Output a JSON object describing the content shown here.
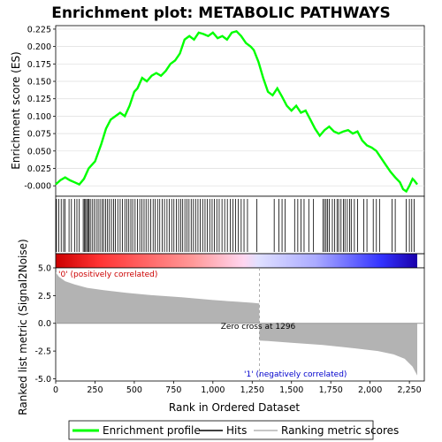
{
  "colors": {
    "enrichment_line": "#00ff00",
    "hit_line": "#000000",
    "metric_fill": "#b3b3b3",
    "zero_line": "#999999",
    "positive_bar": "#ff0000",
    "negative_bar": "#0000ff"
  },
  "chart_data": [
    {
      "type": "line",
      "title": "Enrichment plot: METABOLIC PATHWAYS",
      "ylabel": "Enrichment score (ES)",
      "xlim": [
        0,
        2300
      ],
      "ylim": [
        -0.015,
        0.23
      ],
      "y_ticks": [
        "-0.000",
        "0.025",
        "0.050",
        "0.075",
        "0.100",
        "0.125",
        "0.150",
        "0.175",
        "0.200",
        "0.225"
      ],
      "grid": true,
      "series": [
        {
          "name": "Enrichment profile",
          "x": [
            0,
            30,
            60,
            90,
            120,
            150,
            180,
            210,
            250,
            290,
            320,
            350,
            380,
            410,
            440,
            470,
            500,
            520,
            550,
            580,
            610,
            640,
            670,
            700,
            730,
            760,
            790,
            820,
            850,
            880,
            910,
            940,
            970,
            1000,
            1030,
            1060,
            1090,
            1120,
            1150,
            1180,
            1210,
            1240,
            1260,
            1290,
            1320,
            1350,
            1380,
            1410,
            1440,
            1470,
            1500,
            1530,
            1560,
            1590,
            1620,
            1650,
            1680,
            1710,
            1740,
            1770,
            1800,
            1830,
            1860,
            1890,
            1920,
            1950,
            1980,
            2010,
            2040,
            2070,
            2100,
            2130,
            2160,
            2190,
            2210,
            2230,
            2250,
            2270,
            2280,
            2300
          ],
          "values": [
            0.002,
            0.008,
            0.012,
            0.008,
            0.005,
            0.002,
            0.01,
            0.025,
            0.035,
            0.06,
            0.082,
            0.095,
            0.1,
            0.105,
            0.1,
            0.115,
            0.135,
            0.14,
            0.155,
            0.15,
            0.158,
            0.162,
            0.158,
            0.165,
            0.175,
            0.18,
            0.19,
            0.21,
            0.215,
            0.21,
            0.22,
            0.218,
            0.215,
            0.22,
            0.212,
            0.215,
            0.21,
            0.22,
            0.222,
            0.215,
            0.205,
            0.2,
            0.195,
            0.178,
            0.155,
            0.135,
            0.13,
            0.14,
            0.128,
            0.115,
            0.108,
            0.115,
            0.105,
            0.108,
            0.095,
            0.082,
            0.072,
            0.08,
            0.085,
            0.078,
            0.075,
            0.078,
            0.08,
            0.075,
            0.078,
            0.065,
            0.058,
            0.055,
            0.05,
            0.04,
            0.03,
            0.02,
            0.012,
            0.005,
            -0.005,
            -0.008,
            0.0,
            0.01,
            0.008,
            0.002
          ]
        }
      ]
    },
    {
      "type": "bar",
      "name": "hits",
      "xlim": [
        0,
        2300
      ],
      "hit_ranks": [
        5,
        20,
        35,
        50,
        60,
        85,
        100,
        120,
        135,
        150,
        175,
        182,
        190,
        197,
        205,
        212,
        220,
        232,
        245,
        258,
        270,
        282,
        295,
        305,
        318,
        330,
        342,
        355,
        368,
        380,
        395,
        410,
        425,
        440,
        452,
        465,
        478,
        490,
        505,
        520,
        535,
        548,
        562,
        575,
        590,
        605,
        620,
        632,
        648,
        662,
        678,
        692,
        708,
        722,
        738,
        752,
        768,
        782,
        795,
        808,
        822,
        835,
        848,
        862,
        876,
        890,
        905,
        920,
        935,
        950,
        965,
        980,
        995,
        1010,
        1025,
        1040,
        1058,
        1075,
        1092,
        1110,
        1128,
        1145,
        1162,
        1180,
        1198,
        1220,
        1280,
        1390,
        1420,
        1440,
        1460,
        1520,
        1540,
        1560,
        1580,
        1610,
        1640,
        1700,
        1710,
        1720,
        1730,
        1740,
        1760,
        1775,
        1790,
        1800,
        1815,
        1830,
        1840,
        1855,
        1870,
        1880,
        1900,
        1920,
        1960,
        1980,
        2020,
        2040,
        2060,
        2140,
        2160,
        2230,
        2250,
        2265,
        2280
      ]
    },
    {
      "type": "area",
      "name": "Ranking metric scores",
      "ylabel": "Ranked list metric (Signal2Noise)",
      "xlabel": "Rank in Ordered Dataset",
      "xlim": [
        0,
        2300
      ],
      "ylim": [
        -5.2,
        5.0
      ],
      "x_ticks": [
        "0",
        "250",
        "500",
        "750",
        "1,000",
        "1,250",
        "1,500",
        "1,750",
        "2,000",
        "2,250"
      ],
      "y_ticks": [
        "-5.0",
        "-2.5",
        "0.0",
        "2.5",
        "5.0"
      ],
      "x": [
        0,
        20,
        60,
        120,
        200,
        300,
        450,
        600,
        800,
        1000,
        1150,
        1250,
        1295,
        1296,
        1350,
        1500,
        1700,
        1900,
        2050,
        2150,
        2220,
        2270,
        2300
      ],
      "values": [
        4.6,
        4.2,
        3.8,
        3.5,
        3.2,
        3.0,
        2.75,
        2.55,
        2.35,
        2.1,
        1.95,
        1.85,
        1.8,
        -1.55,
        -1.6,
        -1.75,
        -1.95,
        -2.25,
        -2.5,
        -2.8,
        -3.2,
        -3.9,
        -4.7
      ],
      "zero_cross_label": "Zero cross at 1296",
      "positive_label": "'0' (positively correlated)",
      "negative_label": "'1' (negatively correlated)"
    }
  ],
  "legend": {
    "items": [
      {
        "label": "Enrichment profile",
        "color": "#00ff00"
      },
      {
        "label": "Hits",
        "color": "#000000"
      },
      {
        "label": "Ranking metric scores",
        "color": "#b3b3b3"
      }
    ]
  }
}
